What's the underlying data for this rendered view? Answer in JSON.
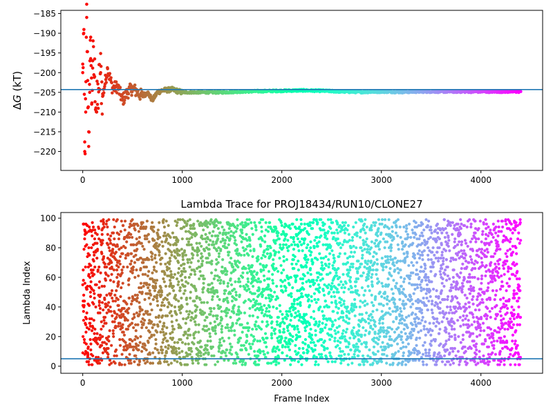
{
  "chart_data": [
    {
      "type": "scatter",
      "title": "",
      "xlabel": "",
      "ylabel_prefix": "Δ",
      "ylabel_var": "G",
      "ylabel_suffix": " (kT)",
      "xlim": [
        -220,
        4620
      ],
      "ylim": [
        -224.8,
        -184.2
      ],
      "xticks": [
        0,
        1000,
        2000,
        3000,
        4000
      ],
      "yticks": [
        -220,
        -215,
        -210,
        -205,
        -200,
        -195,
        -190,
        -185
      ],
      "colormap": "rainbow",
      "hline": {
        "y": -204.3,
        "color": "#1f77b4"
      },
      "frames_total": 4400,
      "series": [
        {
          "name": "",
          "x": [
            0,
            10,
            20,
            30,
            40,
            50,
            60,
            70,
            80,
            90,
            100,
            120,
            140,
            160,
            180,
            200,
            250,
            300,
            350,
            400,
            450,
            500,
            550,
            600,
            650,
            700,
            750,
            800,
            900,
            1000,
            1200,
            1400,
            1600,
            1800,
            2000,
            2200,
            2400,
            2600,
            2800,
            3000,
            3200,
            3400,
            3600,
            3800,
            4000,
            4200,
            4400
          ],
          "y": [
            -200,
            -190,
            -220,
            -210,
            -186,
            -202,
            -215,
            -205,
            -191,
            -208,
            -197,
            -201,
            -210,
            -204,
            -200,
            -206,
            -199,
            -204,
            -203.5,
            -207,
            -205,
            -204,
            -205,
            -206,
            -205,
            -207,
            -205,
            -204.5,
            -204.3,
            -205,
            -205,
            -205,
            -204.8,
            -204.7,
            -204.6,
            -204.5,
            -204.6,
            -204.8,
            -204.9,
            -204.8,
            -204.9,
            -204.8,
            -204.8,
            -204.8,
            -204.8,
            -204.8,
            -204.8
          ]
        }
      ]
    },
    {
      "type": "scatter",
      "title": "Lambda Trace for PROJ18434/RUN10/CLONE27",
      "xlabel": "Frame Index",
      "ylabel": "Lambda Index",
      "xlim": [
        -220,
        4620
      ],
      "ylim": [
        -4.8,
        103.8
      ],
      "xticks": [
        0,
        1000,
        2000,
        3000,
        4000
      ],
      "yticks": [
        0,
        20,
        40,
        60,
        80,
        100
      ],
      "colormap": "rainbow",
      "hline": {
        "y": 5,
        "color": "#1f77b4"
      },
      "frames_total": 4400,
      "lambda_range": [
        1,
        99
      ]
    }
  ]
}
